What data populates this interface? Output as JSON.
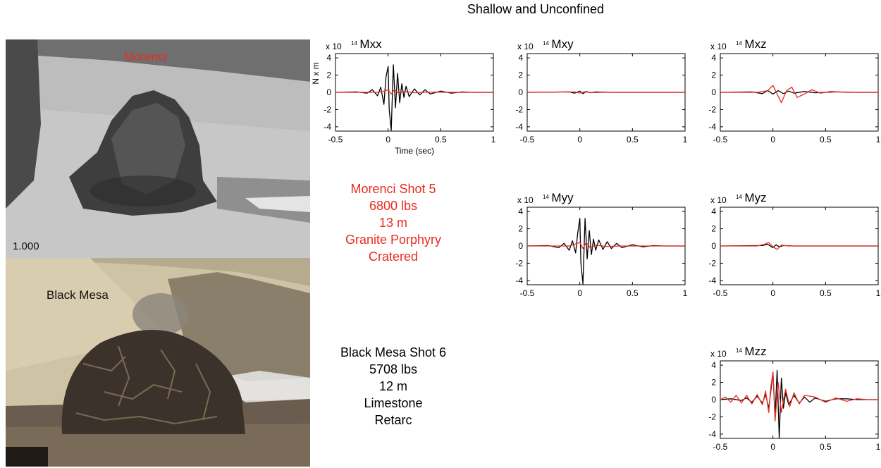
{
  "header": {
    "title": "Shallow and Unconfined"
  },
  "photos": {
    "morenci": {
      "label": "Morenci",
      "frame_counter": "1.000"
    },
    "black_mesa": {
      "label": "Black Mesa"
    }
  },
  "captions": {
    "morenci": [
      "Morenci Shot 5",
      "6800 lbs",
      "13 m",
      "Granite Porphyry",
      "Cratered"
    ],
    "black_mesa": [
      "Black Mesa Shot 6",
      "5708 lbs",
      "12 m",
      "Limestone",
      "Retarc"
    ]
  },
  "colors": {
    "morenci": "#ec2a21",
    "black_mesa": "#000000",
    "caption_highlight": "#ec2a21"
  },
  "chart_data": [
    {
      "type": "line",
      "title": "Mxx",
      "scale_label": "x 10",
      "scale_exp": "14",
      "xlabel": "Time (sec)",
      "ylabel": "N x m",
      "xlim": [
        -0.5,
        1
      ],
      "ylim": [
        -4.5,
        4.5
      ],
      "xticks": [
        "-0.5",
        "0",
        "0.5",
        "1"
      ],
      "yticks": [
        "4",
        "2",
        "0",
        "-2",
        "-4"
      ],
      "series": [
        {
          "color": "#000000",
          "x": [
            -0.5,
            -0.3,
            -0.2,
            -0.15,
            -0.1,
            -0.07,
            -0.04,
            -0.02,
            0,
            0.01,
            0.03,
            0.05,
            0.07,
            0.09,
            0.11,
            0.13,
            0.15,
            0.17,
            0.2,
            0.25,
            0.3,
            0.35,
            0.4,
            0.5,
            0.6,
            0.7,
            0.8,
            1.0
          ],
          "y": [
            0,
            0.05,
            -0.1,
            0.3,
            -0.4,
            0.6,
            -1.4,
            1.8,
            3.0,
            -2.0,
            -4.4,
            3.2,
            -1.8,
            2.2,
            -1.2,
            1.0,
            -0.6,
            0.7,
            -0.5,
            0.4,
            -0.3,
            0.3,
            -0.2,
            0.15,
            -0.1,
            0.05,
            0,
            0
          ]
        },
        {
          "color": "#ec2a21",
          "x": [
            -0.5,
            -0.1,
            -0.05,
            0,
            0.03,
            0.06,
            0.1,
            0.15,
            0.25,
            0.4,
            0.6,
            1.0
          ],
          "y": [
            0,
            0,
            0.1,
            0.3,
            -0.2,
            0.3,
            -0.1,
            0.1,
            -0.05,
            0.03,
            0,
            0
          ]
        }
      ]
    },
    {
      "type": "line",
      "title": "Mxy",
      "scale_label": "x 10",
      "scale_exp": "14",
      "xlabel": "",
      "ylabel": "",
      "xlim": [
        -0.5,
        1
      ],
      "ylim": [
        -4.5,
        4.5
      ],
      "xticks": [
        "-0.5",
        "0",
        "0.5",
        "1"
      ],
      "yticks": [
        "4",
        "2",
        "0",
        "-2",
        "-4"
      ],
      "series": [
        {
          "color": "#000000",
          "x": [
            -0.5,
            -0.1,
            -0.05,
            0,
            0.03,
            0.06,
            0.1,
            0.15,
            0.3,
            1.0
          ],
          "y": [
            0,
            0.05,
            -0.1,
            0.15,
            -0.15,
            0.1,
            -0.05,
            0.05,
            0,
            0
          ]
        },
        {
          "color": "#ec2a21",
          "x": [
            -0.5,
            -0.05,
            0,
            0.05,
            0.1,
            0.2,
            1.0
          ],
          "y": [
            0,
            0.05,
            -0.08,
            0.06,
            -0.03,
            0,
            0
          ]
        }
      ]
    },
    {
      "type": "line",
      "title": "Mxz",
      "scale_label": "x 10",
      "scale_exp": "14",
      "xlabel": "",
      "ylabel": "",
      "xlim": [
        -0.5,
        1
      ],
      "ylim": [
        -4.5,
        4.5
      ],
      "xticks": [
        "-0.5",
        "0",
        "0.5",
        "1"
      ],
      "yticks": [
        "4",
        "2",
        "0",
        "-2",
        "-4"
      ],
      "series": [
        {
          "color": "#000000",
          "x": [
            -0.5,
            -0.2,
            -0.1,
            -0.05,
            0,
            0.05,
            0.1,
            0.15,
            0.2,
            0.3,
            0.4,
            0.6,
            0.8,
            1.0
          ],
          "y": [
            0,
            0.05,
            -0.15,
            0.2,
            -0.2,
            0.2,
            -0.15,
            0.15,
            -0.1,
            0.1,
            -0.05,
            0.05,
            0,
            0
          ]
        },
        {
          "color": "#ec2a21",
          "x": [
            -0.5,
            -0.15,
            -0.05,
            0,
            0.04,
            0.08,
            0.13,
            0.18,
            0.23,
            0.3,
            0.37,
            0.45,
            0.55,
            0.7,
            0.85,
            1.0
          ],
          "y": [
            0,
            0,
            0.2,
            0.8,
            -0.2,
            -1.2,
            0.2,
            0.6,
            -0.6,
            -0.2,
            0.3,
            -0.1,
            0.1,
            0,
            0,
            0
          ]
        }
      ]
    },
    {
      "type": "line",
      "title": "Myy",
      "scale_label": "x 10",
      "scale_exp": "14",
      "xlabel": "",
      "ylabel": "",
      "xlim": [
        -0.5,
        1
      ],
      "ylim": [
        -4.5,
        4.5
      ],
      "xticks": [
        "-0.5",
        "0",
        "0.5",
        "1"
      ],
      "yticks": [
        "4",
        "2",
        "0",
        "-2",
        "-4"
      ],
      "series": [
        {
          "color": "#000000",
          "x": [
            -0.5,
            -0.3,
            -0.2,
            -0.15,
            -0.1,
            -0.07,
            -0.04,
            -0.02,
            0,
            0.01,
            0.03,
            0.05,
            0.07,
            0.09,
            0.11,
            0.13,
            0.15,
            0.18,
            0.22,
            0.26,
            0.3,
            0.35,
            0.4,
            0.5,
            0.6,
            0.7,
            0.8,
            1.0
          ],
          "y": [
            0,
            0.05,
            -0.2,
            0.3,
            -0.5,
            0.6,
            -0.8,
            1.5,
            3.2,
            -2.0,
            -4.4,
            3.2,
            -1.5,
            1.8,
            -1.0,
            0.8,
            -0.5,
            0.7,
            -0.4,
            0.5,
            -0.3,
            0.3,
            -0.2,
            0.15,
            -0.1,
            0.05,
            0,
            0
          ]
        },
        {
          "color": "#ec2a21",
          "x": [
            -0.5,
            -0.1,
            -0.05,
            0,
            0.03,
            0.06,
            0.1,
            0.15,
            0.25,
            0.4,
            1.0
          ],
          "y": [
            0,
            0,
            0.2,
            0.4,
            -0.3,
            0.4,
            -0.2,
            0.1,
            -0.05,
            0,
            0
          ]
        }
      ]
    },
    {
      "type": "line",
      "title": "Myz",
      "scale_label": "x 10",
      "scale_exp": "14",
      "xlabel": "",
      "ylabel": "",
      "xlim": [
        -0.5,
        1
      ],
      "ylim": [
        -4.5,
        4.5
      ],
      "xticks": [
        "-0.5",
        "0",
        "0.5",
        "1"
      ],
      "yticks": [
        "4",
        "2",
        "0",
        "-2",
        "-4"
      ],
      "series": [
        {
          "color": "#000000",
          "x": [
            -0.5,
            -0.1,
            -0.05,
            0,
            0.03,
            0.06,
            0.1,
            0.2,
            1.0
          ],
          "y": [
            0,
            0.05,
            0.2,
            -0.2,
            0.15,
            -0.1,
            0.05,
            0,
            0
          ]
        },
        {
          "color": "#ec2a21",
          "x": [
            -0.5,
            -0.15,
            -0.08,
            -0.04,
            0,
            0.04,
            0.08,
            0.15,
            0.3,
            1.0
          ],
          "y": [
            0,
            0,
            0.2,
            0.4,
            -0.1,
            -0.4,
            0.1,
            0,
            0,
            0
          ]
        }
      ]
    },
    {
      "type": "line",
      "title": "Mzz",
      "scale_label": "x 10",
      "scale_exp": "14",
      "xlabel": "",
      "ylabel": "",
      "xlim": [
        -0.5,
        1
      ],
      "ylim": [
        -4.5,
        4.5
      ],
      "xticks": [
        "-0.5",
        "0",
        "0.5",
        "1"
      ],
      "yticks": [
        "4",
        "2",
        "0",
        "-2",
        "-4"
      ],
      "series": [
        {
          "color": "#000000",
          "x": [
            -0.5,
            -0.4,
            -0.3,
            -0.25,
            -0.2,
            -0.15,
            -0.1,
            -0.07,
            -0.04,
            -0.02,
            0,
            0.02,
            0.04,
            0.06,
            0.08,
            0.1,
            0.12,
            0.15,
            0.2,
            0.25,
            0.3,
            0.35,
            0.4,
            0.5,
            0.6,
            0.7,
            0.8,
            0.9,
            1.0
          ],
          "y": [
            0,
            0.1,
            -0.1,
            0.2,
            -0.3,
            0.4,
            -0.4,
            0.6,
            -1.0,
            1.0,
            3.2,
            -2.0,
            3.4,
            -4.5,
            2.5,
            -1.0,
            0.8,
            -0.6,
            0.5,
            -0.4,
            0.3,
            -0.3,
            0.2,
            -0.2,
            0.1,
            0.1,
            0,
            0,
            0
          ]
        },
        {
          "color": "#ec2a21",
          "x": [
            -0.5,
            -0.45,
            -0.4,
            -0.35,
            -0.3,
            -0.25,
            -0.2,
            -0.15,
            -0.1,
            -0.07,
            -0.04,
            -0.02,
            0,
            0.02,
            0.05,
            0.08,
            0.12,
            0.16,
            0.2,
            0.25,
            0.3,
            0.4,
            0.5,
            0.6,
            0.7,
            0.8,
            0.9,
            1.0
          ],
          "y": [
            0,
            0.3,
            -0.3,
            0.5,
            -0.4,
            0.5,
            -0.5,
            0.6,
            -0.6,
            1.0,
            -1.5,
            1.5,
            3.2,
            -2.5,
            2.0,
            -1.5,
            1.2,
            -0.8,
            0.8,
            -0.5,
            0.5,
            0.3,
            -0.3,
            0.2,
            -0.2,
            0.1,
            0,
            0
          ]
        }
      ]
    }
  ]
}
